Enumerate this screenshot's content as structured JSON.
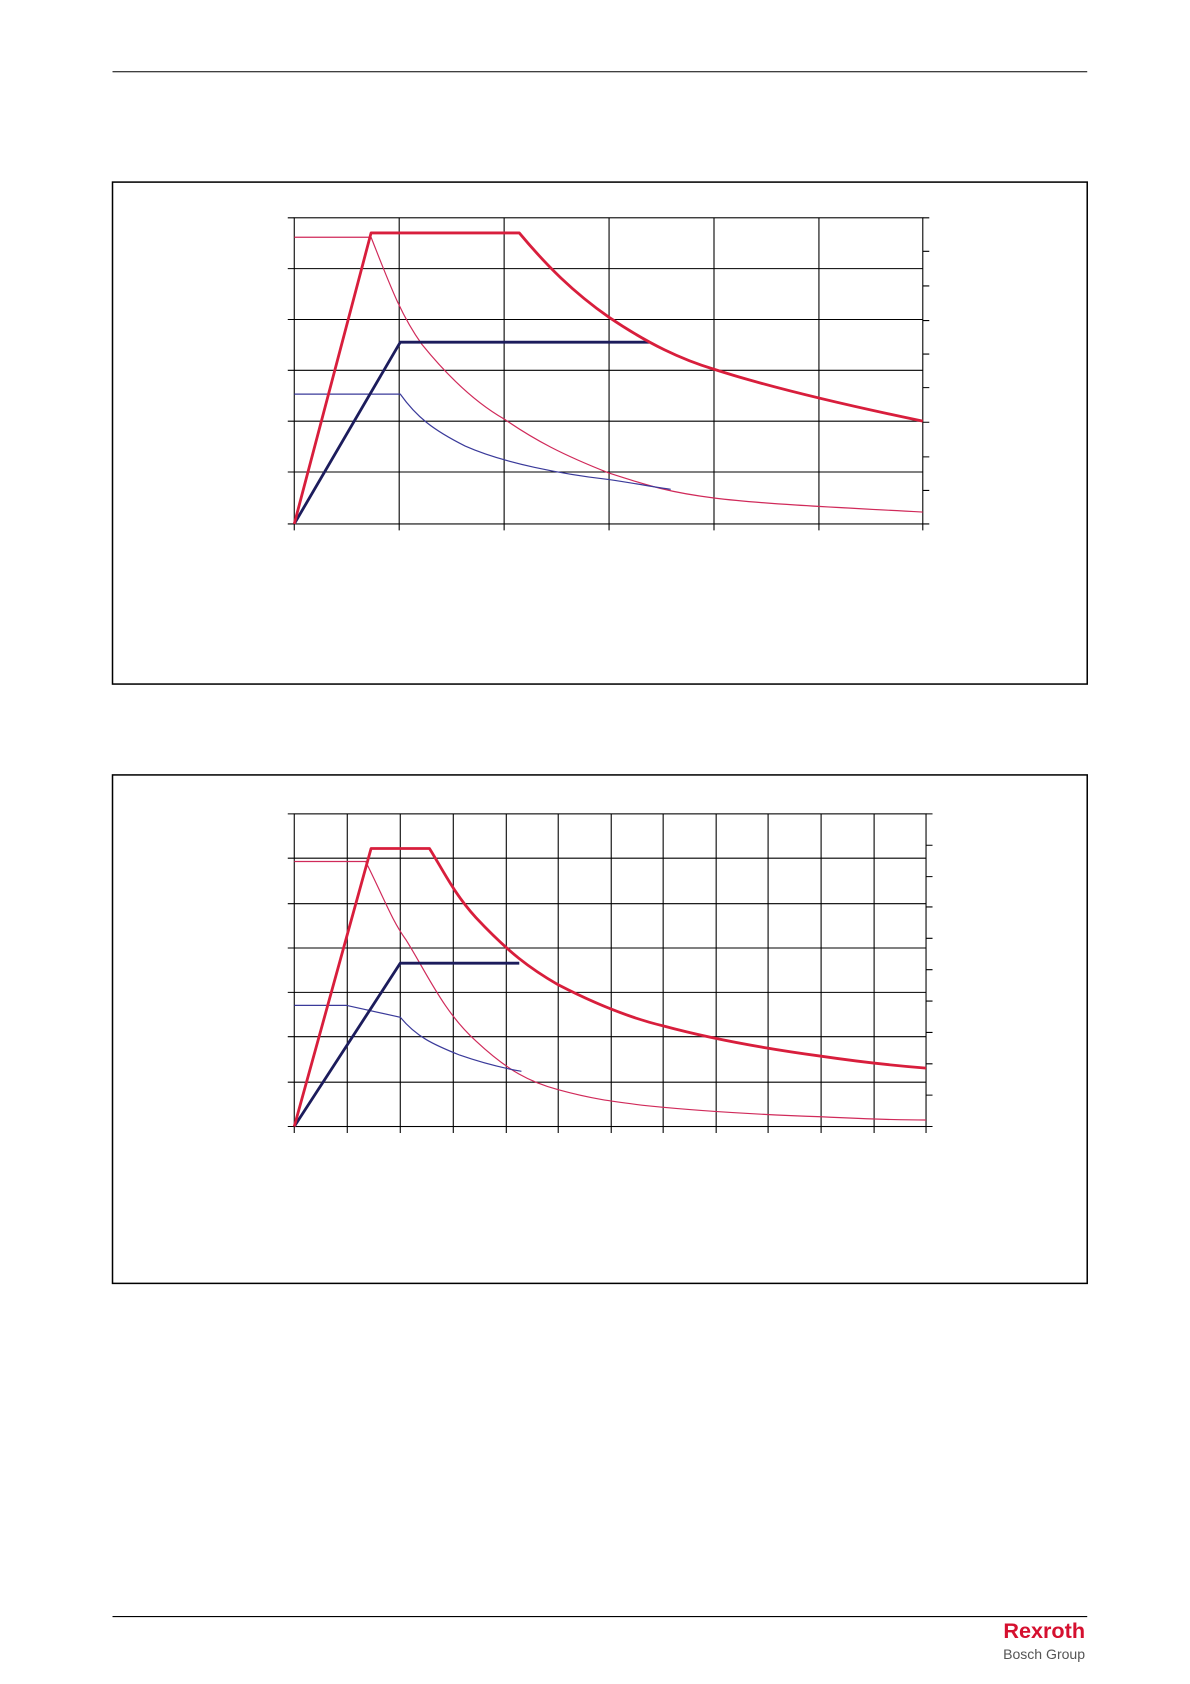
{
  "footer": {
    "logo": "Rexroth",
    "group": "Bosch Group"
  }
}
